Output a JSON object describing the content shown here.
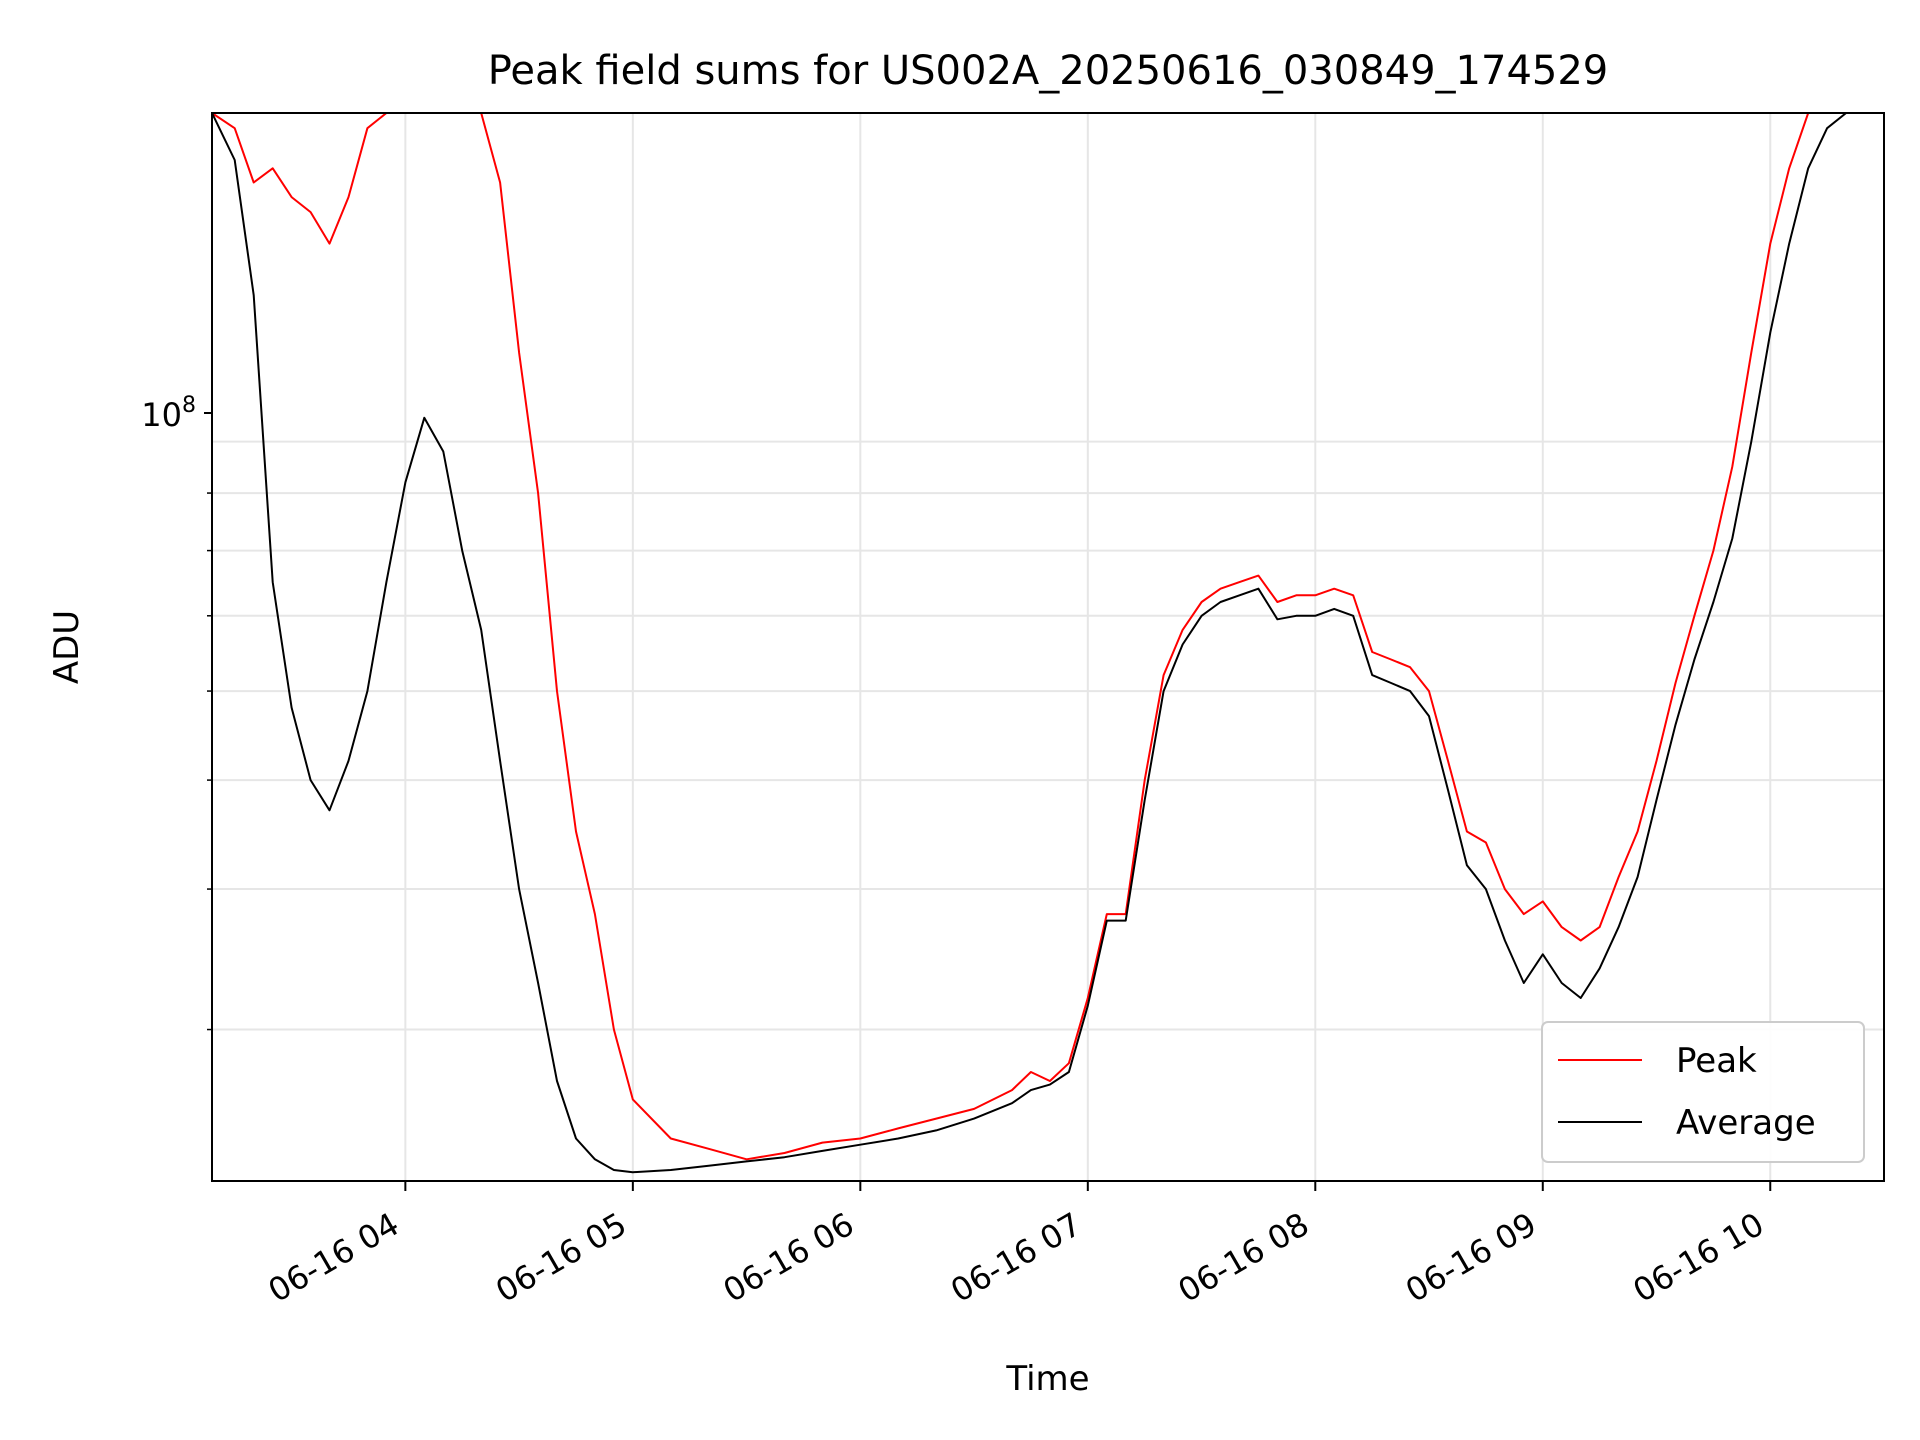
{
  "chart_data": {
    "type": "line",
    "title": "Peak field sums for US002A_20250616_030849_174529",
    "xlabel": "Time",
    "ylabel": "ADU",
    "yscale": "log",
    "ylim": [
      22000000,
      196000000
    ],
    "xlim": [
      "2025-06-16 03:09",
      "2025-06-16 10:30"
    ],
    "grid": true,
    "legend_position": "lower right",
    "x_ticks": [
      "06-16 04",
      "06-16 05",
      "06-16 06",
      "06-16 07",
      "06-16 08",
      "06-16 09",
      "06-16 10"
    ],
    "y_ticks": [
      "10^8"
    ],
    "x": [
      "03:09",
      "03:15",
      "03:20",
      "03:25",
      "03:30",
      "03:35",
      "03:40",
      "03:45",
      "03:50",
      "03:55",
      "04:00",
      "04:05",
      "04:10",
      "04:15",
      "04:20",
      "04:25",
      "04:30",
      "04:35",
      "04:40",
      "04:45",
      "04:50",
      "04:55",
      "05:00",
      "05:10",
      "05:20",
      "05:30",
      "05:40",
      "05:50",
      "06:00",
      "06:10",
      "06:20",
      "06:30",
      "06:40",
      "06:45",
      "06:50",
      "06:55",
      "07:00",
      "07:05",
      "07:10",
      "07:15",
      "07:20",
      "07:25",
      "07:30",
      "07:35",
      "07:40",
      "07:45",
      "07:50",
      "07:55",
      "08:00",
      "08:05",
      "08:10",
      "08:15",
      "08:20",
      "08:25",
      "08:30",
      "08:35",
      "08:40",
      "08:45",
      "08:50",
      "08:55",
      "09:00",
      "09:05",
      "09:10",
      "09:15",
      "09:20",
      "09:25",
      "09:30",
      "09:35",
      "09:40",
      "09:45",
      "09:50",
      "09:55",
      "10:00",
      "10:05",
      "10:10",
      "10:15",
      "10:20",
      "10:25",
      "10:30"
    ],
    "series": [
      {
        "name": "Peak",
        "color": "#ff0000",
        "values": [
          196000000,
          190000000,
          170000000,
          175000000,
          165000000,
          160000000,
          150000000,
          165000000,
          190000000,
          196000000,
          196000000,
          196000000,
          196000000,
          196000000,
          196000000,
          170000000,
          120000000,
          90000000,
          60000000,
          45000000,
          38000000,
          30000000,
          26000000,
          24000000,
          23500000,
          23000000,
          23300000,
          23800000,
          24000000,
          24500000,
          25000000,
          25500000,
          26500000,
          27500000,
          27000000,
          28000000,
          32000000,
          38000000,
          38000000,
          50000000,
          62000000,
          68000000,
          72000000,
          74000000,
          75000000,
          76000000,
          72000000,
          73000000,
          73000000,
          74000000,
          73000000,
          65000000,
          64000000,
          63000000,
          60000000,
          52000000,
          45000000,
          44000000,
          40000000,
          38000000,
          39000000,
          37000000,
          36000000,
          37000000,
          41000000,
          45000000,
          52000000,
          61000000,
          70000000,
          80000000,
          95000000,
          120000000,
          150000000,
          175000000,
          196000000,
          196000000,
          196000000,
          196000000,
          196000000
        ]
      },
      {
        "name": "Average",
        "color": "#000000",
        "values": [
          196000000,
          178000000,
          135000000,
          75000000,
          58000000,
          50000000,
          47000000,
          52000000,
          60000000,
          75000000,
          92000000,
          105000000,
          98000000,
          80000000,
          68000000,
          52000000,
          40000000,
          33000000,
          27000000,
          24000000,
          23000000,
          22500000,
          22400000,
          22500000,
          22700000,
          22900000,
          23100000,
          23400000,
          23700000,
          24000000,
          24400000,
          25000000,
          25800000,
          26500000,
          26800000,
          27500000,
          31500000,
          37500000,
          37500000,
          48000000,
          60000000,
          66000000,
          70000000,
          72000000,
          73000000,
          74000000,
          69500000,
          70000000,
          70000000,
          71000000,
          70000000,
          62000000,
          61000000,
          60000000,
          57000000,
          49000000,
          42000000,
          40000000,
          36000000,
          33000000,
          35000000,
          33000000,
          32000000,
          34000000,
          37000000,
          41000000,
          48000000,
          56000000,
          64000000,
          72000000,
          82000000,
          100000000,
          125000000,
          150000000,
          175000000,
          190000000,
          196000000,
          196000000,
          196000000
        ]
      }
    ]
  }
}
